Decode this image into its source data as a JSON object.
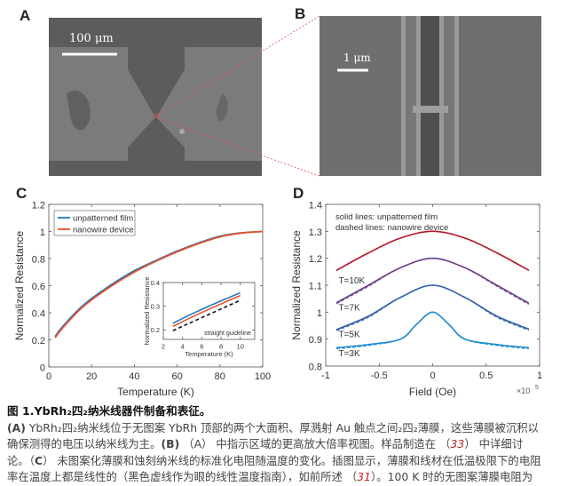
{
  "panels": {
    "A": {
      "label": "A",
      "scale_bar": "100 μm"
    },
    "B": {
      "label": "B",
      "scale_bar": "1 μm"
    },
    "C": {
      "label": "C"
    },
    "D": {
      "label": "D"
    }
  },
  "colors": {
    "blue": "#1f77c4",
    "orange": "#e5512a",
    "red": "#b5152b",
    "purple": "#6a3d8c",
    "navy_blue": "#2f5ea8",
    "light_blue": "#1a88cf",
    "zoom_line": "#e05050"
  },
  "chart_data": [
    {
      "id": "C",
      "type": "line",
      "xlabel": "Temperature (K)",
      "ylabel": "Normalized Resistance",
      "xlim": [
        0,
        100
      ],
      "ylim": [
        0,
        1.2
      ],
      "xticks": [
        "0",
        "20",
        "40",
        "60",
        "80",
        "100"
      ],
      "yticks": [
        "0",
        "0.2",
        "0.4",
        "0.6",
        "0.8",
        "1",
        "1.2"
      ],
      "legend": [
        "unpatterned film",
        "nanowire device"
      ],
      "legend_position": "top-left",
      "series": [
        {
          "name": "unpatterned film",
          "x": [
            3,
            5,
            10,
            15,
            20,
            30,
            40,
            50,
            60,
            70,
            80,
            90,
            100
          ],
          "y": [
            0.225,
            0.27,
            0.36,
            0.44,
            0.505,
            0.615,
            0.71,
            0.785,
            0.855,
            0.915,
            0.965,
            0.99,
            1.0
          ]
        },
        {
          "name": "nanowire device",
          "x": [
            3,
            5,
            10,
            15,
            20,
            30,
            40,
            50,
            60,
            70,
            80,
            90,
            100
          ],
          "y": [
            0.215,
            0.26,
            0.35,
            0.43,
            0.495,
            0.605,
            0.7,
            0.78,
            0.85,
            0.91,
            0.96,
            0.988,
            1.0
          ]
        }
      ],
      "inset": {
        "xlabel": "Temperature (K)",
        "ylabel": "Normalized Resistance",
        "xlim": [
          2,
          11.5
        ],
        "ylim": [
          0.16,
          0.4
        ],
        "xticks": [
          "2",
          "4",
          "6",
          "8",
          "10"
        ],
        "yticks": [
          "0.2",
          "0.3",
          "0.4"
        ],
        "annotation": "straight guideline",
        "series": [
          {
            "name": "unpatterned film",
            "x": [
              3,
              5,
              7,
              10
            ],
            "y": [
              0.228,
              0.268,
              0.305,
              0.357
            ]
          },
          {
            "name": "nanowire device",
            "x": [
              3,
              5,
              7,
              10
            ],
            "y": [
              0.215,
              0.255,
              0.292,
              0.345
            ]
          },
          {
            "name": "straight guideline",
            "x": [
              3,
              10
            ],
            "y": [
              0.197,
              0.325
            ]
          }
        ]
      }
    },
    {
      "id": "D",
      "type": "line",
      "xlabel": "Field (Oe)",
      "x_multiplier": "×10",
      "x_multiplier_exp": "5",
      "ylabel": "Normalized Resistance",
      "xlim": [
        -1,
        1
      ],
      "ylim": [
        0.8,
        1.4
      ],
      "xticks": [
        "-1",
        "-0.5",
        "0",
        "0.5",
        "1"
      ],
      "yticks": [
        "0.8",
        "0.9",
        "1",
        "1.1",
        "1.2",
        "1.3",
        "1.4"
      ],
      "annotation_lines": [
        "solid lines: unpatterned film",
        "dashed lines: nanowire device"
      ],
      "series": [
        {
          "name": "T=10K",
          "x": [
            -0.9,
            -0.6,
            -0.3,
            0,
            0.3,
            0.6,
            0.9
          ],
          "y": [
            1.155,
            1.22,
            1.275,
            1.3,
            1.275,
            1.22,
            1.155
          ]
        },
        {
          "name": "T=7K",
          "x": [
            -0.9,
            -0.6,
            -0.3,
            0,
            0.3,
            0.6,
            0.9
          ],
          "y": [
            1.035,
            1.1,
            1.165,
            1.2,
            1.165,
            1.1,
            1.033
          ]
        },
        {
          "name": "T=5K",
          "x": [
            -0.9,
            -0.6,
            -0.3,
            0,
            0.3,
            0.6,
            0.9
          ],
          "y": [
            0.935,
            0.985,
            1.055,
            1.1,
            1.055,
            0.985,
            0.937
          ]
        },
        {
          "name": "T=3K",
          "x": [
            -0.9,
            -0.6,
            -0.3,
            -0.15,
            0,
            0.15,
            0.3,
            0.6,
            0.9
          ],
          "y": [
            0.868,
            0.88,
            0.9,
            0.955,
            1.0,
            0.955,
            0.9,
            0.88,
            0.868
          ]
        }
      ],
      "series_labels": [
        "T=10K",
        "T=7K",
        "T=5K",
        "T=3K"
      ]
    }
  ],
  "caption": {
    "title": "图 1.YbRh₂四₂纳米线器件制备和表征。",
    "line1_a": "(A)",
    "line1_b": " YbRh₂四₂纳米线位于无图案 YbRh 顶部的两个大面积、厚溅射 Au 触点之间₂四₂薄膜，这些薄膜被沉积以",
    "line2_a": "确保测得的电压以纳米线为主。",
    "line2_b": "(B)",
    "line2_c": " （A） 中指示区域的更高放大倍率视图。样品制造在 （",
    "line2_ref": "33",
    "line2_d": "） 中详细讨",
    "line3_a": "论。（",
    "line3_b": "C",
    "line3_c": "） 未图案化薄膜和蚀刻纳米线的标准化电阻随温度的变化。插图显示，薄膜和线材在低温极限下的电阻",
    "line4_a": "率在温度上都是线性的（黑色虚线作为眼的线性温度指南），如前所述 （",
    "line4_ref": "31",
    "line4_b": "）。100 K 时的无图案薄膜电阻为"
  }
}
